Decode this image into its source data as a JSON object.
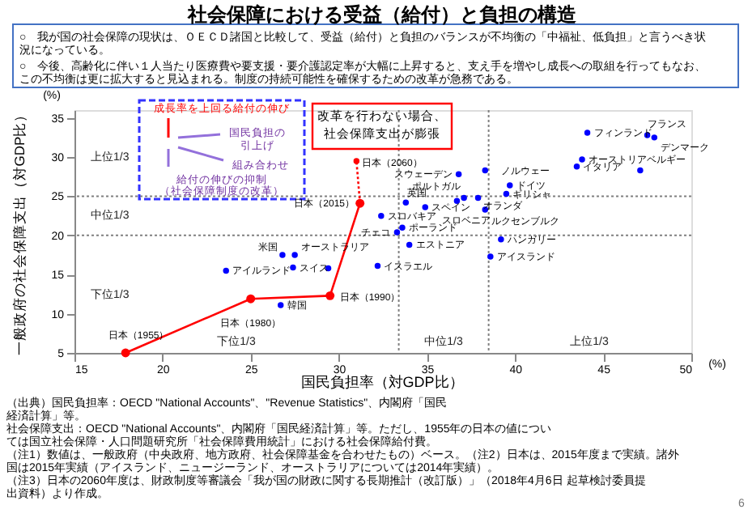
{
  "chart_data": {
    "type": "scatter",
    "title": "社会保障における受益（給付）と負担の構造",
    "xlabel": "国民負担率（対GDP比）",
    "ylabel": "一般政府の社会保障支出（対GDP比）",
    "xlim": [
      15,
      50
    ],
    "ylim": [
      5,
      36
    ],
    "xticks": [
      15,
      20,
      25,
      30,
      35,
      40,
      45,
      50
    ],
    "yticks": [
      5,
      10,
      15,
      20,
      25,
      30,
      35
    ],
    "grid": false,
    "marker": "circle",
    "series": [
      {
        "type": "scatter",
        "color": "#0000ff",
        "x": [
          44.1,
          47.5,
          47.9,
          43.8,
          43.5,
          47.1,
          36.8,
          38.3,
          39.7,
          39.5,
          37.1,
          37.9,
          38.3,
          33.8,
          34.9,
          36.7,
          32.4,
          33.6,
          33.3,
          39.2,
          34.0,
          38.6,
          32.2,
          26.8,
          27.5,
          27.4,
          23.6,
          26.7,
          29.4
        ],
        "values": [
          33.1,
          32.8,
          32.5,
          29.7,
          28.8,
          28.3,
          27.8,
          28.3,
          26.4,
          25.3,
          24.8,
          24.8,
          23.3,
          24.2,
          23.6,
          24.4,
          22.5,
          21.0,
          20.4,
          19.5,
          18.8,
          17.3,
          16.1,
          17.5,
          17.5,
          15.9,
          15.5,
          11.1,
          15.8
        ]
      },
      {
        "type": "line",
        "color": "#ff0000",
        "line_style": "solid",
        "x": [
          17.9,
          25.0,
          29.5,
          31.2
        ],
        "values": [
          5.0,
          11.9,
          12.3,
          24.1
        ]
      },
      {
        "type": "line",
        "color": "#ff0000",
        "line_style": "dotted",
        "x": [
          31.2,
          31.0
        ],
        "values": [
          24.1,
          29.5
        ]
      }
    ],
    "ref_lines": [
      {
        "axis": "y",
        "value": 25,
        "color": "#808080",
        "line_style": "dotted"
      },
      {
        "axis": "y",
        "value": 20,
        "color": "#808080",
        "line_style": "dotted"
      },
      {
        "axis": "x",
        "value": 33.4,
        "color": "#808080",
        "line_style": "dotted"
      },
      {
        "axis": "x",
        "value": 38.5,
        "color": "#808080",
        "line_style": "dotted"
      }
    ],
    "annotations": [
      "○　我が国の社会保障の現状は、ＯＥＣＤ諸国と比較して、受益（給付）と負担のバランスが不均衡の「中福祉、低負担」と言うべき状況になっている。",
      "○　今後、高齢化に伴い１人当たり医療費や要支援・要介護認定率が大幅に上昇すると、支え手を増やし成長への取組を行ってもなお、この不均衡は更に拡大すると見込まれる。制度の持続可能性を確保するための改革が急務である。",
      "改革を行わない場合、",
      "社会保障支出が膨張",
      "成長率を上回る給付の伸び",
      "国民負担の",
      "引上げ",
      "組み合わせ",
      "給付の伸びの抑制",
      "（社会保障制度の改革）",
      "(%)",
      "(%)",
      "（出典）国民負担率：OECD \"National Accounts\"、\"Revenue Statistics\"、内閣府「国民経済計算」等。",
      "社会保障支出：OECD \"National Accounts\"、内閣府「国民経済計算」等。ただし、1955年の日本の値については国立社会保障・人口問題研究所「社会保障費用統計」における社会保障給付費。",
      "（注1）数値は、一般政府（中央政府、地方政府、社会保障基金を合わせたもの）ベース。（注2）日本は、2015年度まで実績。諸外国は2015年実績（アイスランド、ニュージーランド、オーストラリアについては2014年実績）。",
      "（注3）日本の2060年度は、財政制度等審議会「我が国の財政に関する長期推計（改訂版）」（2018年4月6日 起草検討委員提出資料）より作成。",
      "6",
      "上位1/3",
      "中位1/3",
      "下位1/3",
      "下位1/3",
      "中位1/3",
      "上位1/3",
      {
        "text": "日本（1955）",
        "x": 17.9,
        "y": 5.0
      },
      {
        "text": "日本（1980）",
        "x": 25.0,
        "y": 11.9
      },
      {
        "text": "日本（1990）",
        "x": 29.5,
        "y": 12.3
      },
      {
        "text": "日本（2015）",
        "x": 31.2,
        "y": 24.1
      },
      {
        "text": "日本（2060）",
        "x": 31.0,
        "y": 29.5
      },
      {
        "text": "フィンランド",
        "x": 44.1,
        "y": 33.1
      },
      {
        "text": "フランス",
        "x": 47.5,
        "y": 32.8
      },
      {
        "text": "デンマーク",
        "x": 47.9,
        "y": 32.5
      },
      {
        "text": "オーストリア",
        "x": 43.8,
        "y": 29.7
      },
      {
        "text": "イタリア",
        "x": 43.5,
        "y": 28.8
      },
      {
        "text": "ベルギー",
        "x": 47.1,
        "y": 28.3
      },
      {
        "text": "スウェーデン",
        "x": 36.8,
        "y": 27.8
      },
      {
        "text": "ノルウェー",
        "x": 38.3,
        "y": 28.3
      },
      {
        "text": "ドイツ",
        "x": 39.7,
        "y": 26.4
      },
      {
        "text": "ギリシャ",
        "x": 39.5,
        "y": 25.3
      },
      {
        "text": "ポルトガル",
        "x": 37.1,
        "y": 24.8
      },
      {
        "text": "オランダ",
        "x": 37.9,
        "y": 24.8
      },
      {
        "text": "ルクセンブルク",
        "x": 38.3,
        "y": 23.3
      },
      {
        "text": "英国",
        "x": 33.8,
        "y": 24.2
      },
      {
        "text": "スペイン",
        "x": 34.9,
        "y": 23.6
      },
      {
        "text": "スロベニア",
        "x": 36.7,
        "y": 24.4
      },
      {
        "text": "スロバキア",
        "x": 32.4,
        "y": 22.5
      },
      {
        "text": "ポーランド",
        "x": 33.6,
        "y": 21.0
      },
      {
        "text": "チェコ",
        "x": 33.3,
        "y": 20.4
      },
      {
        "text": "ハンガリー",
        "x": 39.2,
        "y": 19.5
      },
      {
        "text": "エストニア",
        "x": 34.0,
        "y": 18.8
      },
      {
        "text": "アイスランド",
        "x": 38.6,
        "y": 17.3
      },
      {
        "text": "イスラエル",
        "x": 32.2,
        "y": 16.1
      },
      {
        "text": "米国",
        "x": 26.8,
        "y": 17.5
      },
      {
        "text": "オーストラリア",
        "x": 27.5,
        "y": 17.5
      },
      {
        "text": "スイス",
        "x": 27.4,
        "y": 15.9
      },
      {
        "text": "アイルランド",
        "x": 23.6,
        "y": 15.5
      },
      {
        "text": "韓国",
        "x": 26.7,
        "y": 11.1
      }
    ]
  }
}
